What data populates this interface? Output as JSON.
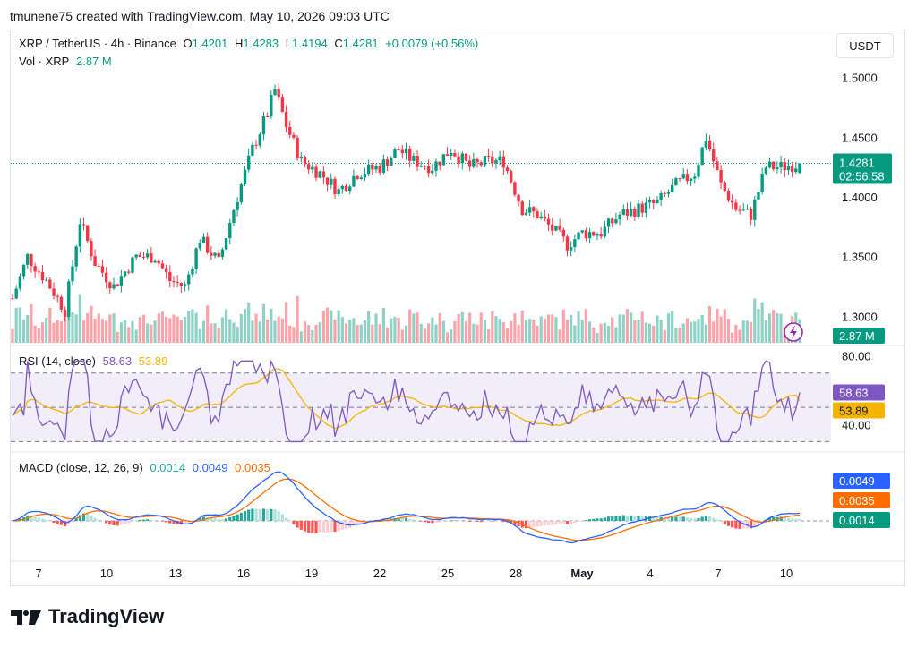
{
  "header": {
    "watermark": "tmunene75 created with TradingView.com, May 10, 2026 09:03 UTC"
  },
  "legend": {
    "symbol": "XRP / TetherUS · 4h · Binance",
    "o_label": "O",
    "o_value": "1.4201",
    "h_label": "H",
    "h_value": "1.4283",
    "l_label": "L",
    "l_value": "1.4194",
    "c_label": "C",
    "c_value": "1.4281",
    "change": "+0.0079 (+0.56%)",
    "vol_label": "Vol · XRP",
    "vol_value": "2.87 M"
  },
  "currency_button": "USDT",
  "price_tag": {
    "price": "1.4281",
    "countdown": "02:56:58"
  },
  "volume_tag": "2.87 M",
  "rsi_legend": {
    "label": "RSI (14, close)",
    "rsi": "58.63",
    "ma": "53.89"
  },
  "macd_legend": {
    "label": "MACD (close, 12, 26, 9)",
    "hist": "0.0014",
    "macd": "0.0049",
    "signal": "0.0035"
  },
  "brand": "TradingView",
  "colors": {
    "up": "#089981",
    "down": "#f23645",
    "rsi": "#7e57c2",
    "rsi_ma": "#f5b400",
    "macd": "#2962ff",
    "signal": "#ff6d00"
  },
  "chart_data": [
    {
      "type": "candlestick",
      "title": "XRP / TetherUS · 4h · Binance",
      "x_ticks": [
        "7",
        "10",
        "13",
        "16",
        "19",
        "22",
        "25",
        "28",
        "May",
        "4",
        "7",
        "10"
      ],
      "y_ticks": [
        "1.5000",
        "1.4500",
        "1.4000",
        "1.3500",
        "1.3000"
      ],
      "ylim": [
        1.28,
        1.52
      ],
      "waypoints": [
        [
          0,
          1.315
        ],
        [
          4,
          1.35
        ],
        [
          9,
          1.33
        ],
        [
          14,
          1.305
        ],
        [
          18,
          1.38
        ],
        [
          22,
          1.345
        ],
        [
          27,
          1.325
        ],
        [
          33,
          1.35
        ],
        [
          38,
          1.35
        ],
        [
          42,
          1.33
        ],
        [
          46,
          1.325
        ],
        [
          50,
          1.365
        ],
        [
          55,
          1.345
        ],
        [
          59,
          1.39
        ],
        [
          64,
          1.44
        ],
        [
          68,
          1.47
        ],
        [
          70,
          1.49
        ],
        [
          73,
          1.46
        ],
        [
          77,
          1.43
        ],
        [
          82,
          1.42
        ],
        [
          87,
          1.405
        ],
        [
          92,
          1.42
        ],
        [
          98,
          1.425
        ],
        [
          103,
          1.44
        ],
        [
          107,
          1.43
        ],
        [
          112,
          1.425
        ],
        [
          117,
          1.44
        ],
        [
          122,
          1.425
        ],
        [
          127,
          1.43
        ],
        [
          131,
          1.43
        ],
        [
          136,
          1.39
        ],
        [
          140,
          1.385
        ],
        [
          145,
          1.37
        ],
        [
          148,
          1.36
        ],
        [
          152,
          1.37
        ],
        [
          157,
          1.37
        ],
        [
          162,
          1.385
        ],
        [
          167,
          1.39
        ],
        [
          172,
          1.395
        ],
        [
          177,
          1.41
        ],
        [
          182,
          1.42
        ],
        [
          185,
          1.45
        ],
        [
          189,
          1.41
        ],
        [
          193,
          1.39
        ],
        [
          197,
          1.385
        ],
        [
          201,
          1.425
        ],
        [
          205,
          1.425
        ],
        [
          210,
          1.428
        ]
      ]
    },
    {
      "type": "line",
      "title": "RSI (14, close)",
      "y_ticks": [
        "80.00",
        "40.00"
      ],
      "ylim": [
        25,
        85
      ],
      "bands": [
        70,
        50,
        30
      ],
      "series": [
        {
          "name": "RSI",
          "last": 58.63
        },
        {
          "name": "MA",
          "last": 53.89
        }
      ]
    },
    {
      "type": "line",
      "title": "MACD (close, 12, 26, 9)",
      "series": [
        {
          "name": "MACD",
          "last": 0.0049
        },
        {
          "name": "Signal",
          "last": 0.0035
        },
        {
          "name": "Histogram",
          "last": 0.0014
        }
      ]
    }
  ]
}
